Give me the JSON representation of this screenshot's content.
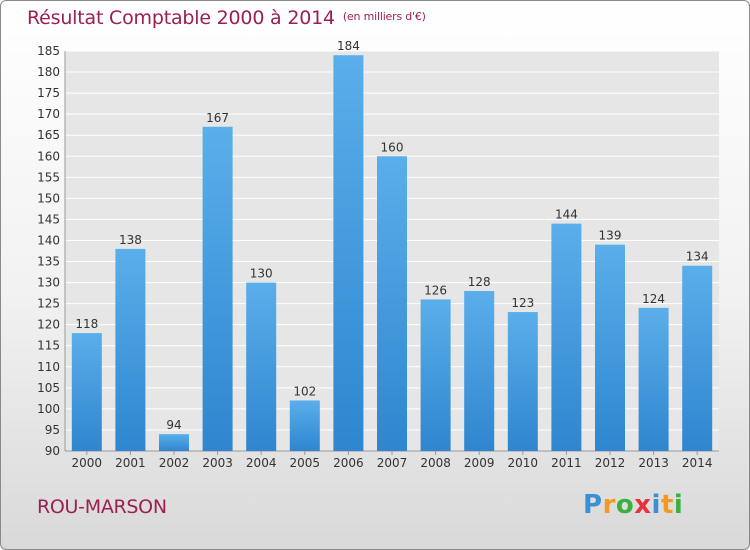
{
  "chart_data": {
    "type": "bar",
    "title": "Résultat Comptable 2000 à 2014",
    "subtitle": "(en milliers d'€)",
    "categories": [
      "2000",
      "2001",
      "2002",
      "2003",
      "2004",
      "2005",
      "2006",
      "2007",
      "2008",
      "2009",
      "2010",
      "2011",
      "2012",
      "2013",
      "2014"
    ],
    "values": [
      118,
      138,
      94,
      167,
      130,
      102,
      184,
      160,
      126,
      128,
      123,
      144,
      139,
      124,
      134
    ],
    "ylim": [
      90,
      185
    ],
    "yticks": [
      90,
      95,
      100,
      105,
      110,
      115,
      120,
      125,
      130,
      135,
      140,
      145,
      150,
      155,
      160,
      165,
      170,
      175,
      180,
      185
    ],
    "grid": true,
    "colors": {
      "bar_top": "#5aaeea",
      "bar_bottom": "#2f86cf",
      "title": "#9b1f52",
      "grid": "#ffffff",
      "plot_bg": "#e6e6e6"
    }
  },
  "footer": {
    "commune": "ROU-MARSON",
    "logo": {
      "letters": [
        "P",
        "r",
        "o",
        "x",
        "i",
        "t",
        "i"
      ],
      "colors": [
        "#3c8fd1",
        "#f29a1f",
        "#3cb03c",
        "#e8313a",
        "#3c8fd1",
        "#f29a1f",
        "#3cb03c"
      ]
    }
  }
}
